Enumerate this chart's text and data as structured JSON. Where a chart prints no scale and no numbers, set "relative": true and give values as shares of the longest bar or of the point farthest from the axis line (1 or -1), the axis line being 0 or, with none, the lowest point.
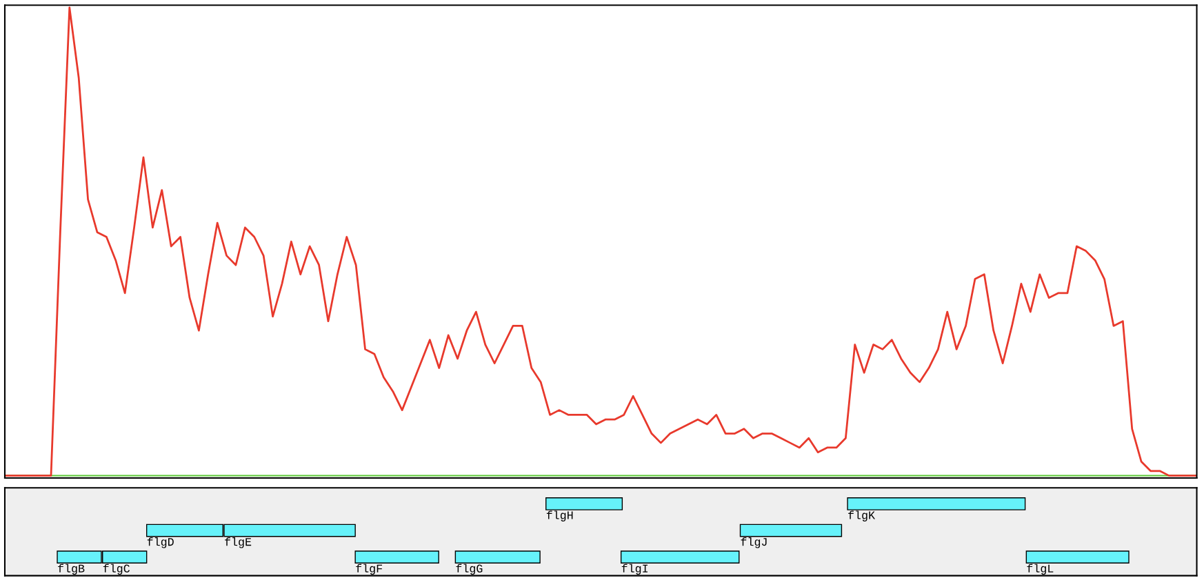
{
  "chart_data": [
    {
      "type": "line",
      "relative": true,
      "categories": [
        null,
        null,
        null,
        null,
        null,
        null,
        null,
        null,
        null,
        null,
        null,
        null,
        null,
        null,
        null,
        null,
        null,
        null,
        null,
        null,
        null,
        null,
        null,
        null,
        null,
        null,
        null,
        null,
        null,
        null,
        null,
        null,
        null,
        null,
        null,
        null,
        null,
        null,
        null,
        null,
        null,
        null,
        null,
        null,
        null,
        null,
        null,
        null,
        null,
        null,
        null,
        null,
        null,
        null,
        null,
        null,
        null,
        null,
        null,
        null,
        null,
        null,
        null,
        null,
        null,
        null,
        null,
        null,
        null,
        null,
        null,
        null,
        null,
        null,
        null,
        null,
        null,
        null,
        null,
        null,
        null,
        null,
        null,
        null,
        null,
        null,
        null,
        null,
        null,
        null,
        null,
        null,
        null,
        null,
        null,
        null,
        null,
        null,
        null,
        null,
        null,
        null,
        null,
        null,
        null,
        null,
        null,
        null,
        null,
        null,
        null,
        null,
        null,
        null,
        null,
        null,
        null,
        null,
        null,
        null,
        null,
        null,
        null,
        null,
        null,
        null,
        null,
        null,
        null,
        null
      ],
      "series": [
        {
          "color": "#e8392c",
          "values": [
            0,
            0,
            0,
            0,
            0,
            0,
            0.52,
            1.0,
            0.85,
            0.59,
            0.52,
            0.51,
            0.46,
            0.39,
            0.53,
            0.68,
            0.53,
            0.61,
            0.49,
            0.51,
            0.38,
            0.31,
            0.43,
            0.54,
            0.47,
            0.45,
            0.53,
            0.51,
            0.47,
            0.34,
            0.41,
            0.5,
            0.43,
            0.49,
            0.45,
            0.33,
            0.43,
            0.51,
            0.45,
            0.27,
            0.26,
            0.21,
            0.18,
            0.14,
            0.19,
            0.24,
            0.29,
            0.23,
            0.3,
            0.25,
            0.31,
            0.35,
            0.28,
            0.24,
            0.28,
            0.32,
            0.32,
            0.23,
            0.2,
            0.13,
            0.14,
            0.13,
            0.13,
            0.13,
            0.11,
            0.12,
            0.12,
            0.13,
            0.17,
            0.13,
            0.09,
            0.07,
            0.09,
            0.1,
            0.11,
            0.12,
            0.11,
            0.13,
            0.09,
            0.09,
            0.1,
            0.08,
            0.09,
            0.09,
            0.08,
            0.07,
            0.06,
            0.08,
            0.05,
            0.06,
            0.06,
            0.08,
            0.28,
            0.22,
            0.28,
            0.27,
            0.29,
            0.25,
            0.22,
            0.2,
            0.23,
            0.27,
            0.35,
            0.27,
            0.32,
            0.42,
            0.43,
            0.31,
            0.24,
            0.32,
            0.41,
            0.35,
            0.43,
            0.38,
            0.39,
            0.39,
            0.49,
            0.48,
            0.46,
            0.42,
            0.32,
            0.33,
            0.1,
            0.03,
            0.01,
            0.01,
            0,
            0,
            0,
            0
          ]
        }
      ],
      "ref_lines": [
        {
          "axis": "y",
          "value": 0,
          "color": "#66cc44"
        }
      ],
      "tick_labels": false
    },
    {
      "type": "other",
      "annotations": [
        "flgH",
        "flgK",
        "flgD",
        "flgE",
        "flgJ",
        "flgB",
        "flgC",
        "flgF",
        "flgG",
        "flgI",
        "flgL"
      ]
    }
  ]
}
